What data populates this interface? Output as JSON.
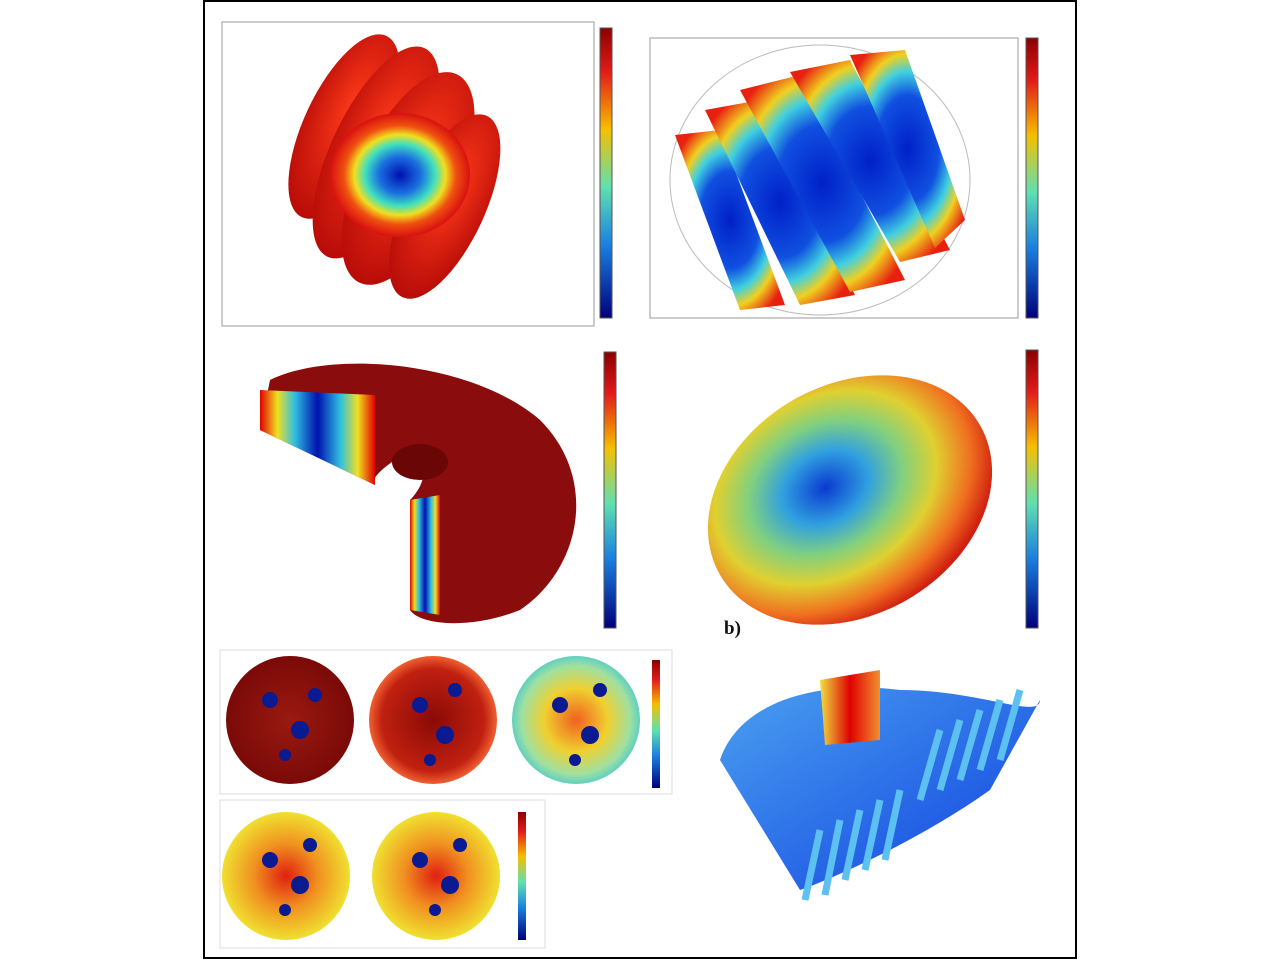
{
  "labels": {
    "panel_b": "b)"
  }
}
